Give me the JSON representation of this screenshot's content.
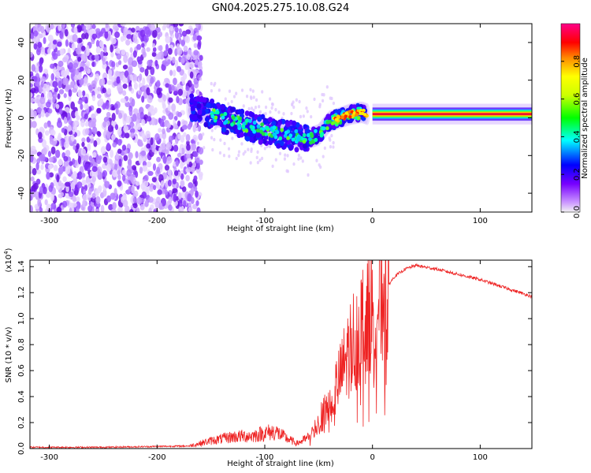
{
  "chart_data": [
    {
      "type": "heatmap",
      "title": "GN04.2025.275.10.08.G24",
      "xlabel": "Height of straight line (km)",
      "ylabel": "Frequency (Hz)",
      "xlim": [
        -318,
        148
      ],
      "ylim": [
        -50,
        50
      ],
      "x_ticks": [
        -300,
        -200,
        -100,
        0,
        100
      ],
      "y_ticks": [
        -40,
        -20,
        0,
        20,
        40
      ],
      "colorbar": {
        "label": "Normalized spectral amplitude",
        "range": [
          0,
          1
        ],
        "ticks": [
          0.0,
          0.2,
          0.4,
          0.6,
          0.8
        ]
      },
      "ridge": {
        "x": [
          -170,
          -150,
          -130,
          -110,
          -90,
          -70,
          -60,
          -50,
          -40,
          -30,
          -20,
          -10,
          0,
          20,
          60,
          100,
          148
        ],
        "y": [
          5,
          2,
          -2,
          -5,
          -8,
          -10,
          -11,
          -9,
          -2,
          0,
          2,
          3,
          1,
          2,
          2,
          2,
          2
        ]
      },
      "noise_region_xmax": -165
    },
    {
      "type": "line",
      "xlabel": "Height of straight line (km)",
      "ylabel": "SNR (10 * v/v)",
      "scale_note": "(x10^4)",
      "scale_base": "(x10",
      "scale_exp": "4",
      "scale_close": ")",
      "xlim": [
        -318,
        148
      ],
      "ylim": [
        0,
        1.45
      ],
      "x_ticks": [
        -300,
        -200,
        -100,
        0,
        100
      ],
      "y_ticks": [
        0.0,
        0.2,
        0.4,
        0.6,
        0.8,
        1.0,
        1.2,
        1.4
      ],
      "series": [
        {
          "name": "SNR",
          "color": "#ee2222",
          "envelope": {
            "x": [
              -318,
              -250,
              -170,
              -150,
              -130,
              -110,
              -100,
              -90,
              -80,
              -70,
              -60,
              -50,
              -40,
              -30,
              -20,
              -10,
              0,
              10,
              20,
              30,
              40,
              60,
              100,
              148
            ],
            "y": [
              0.01,
              0.01,
              0.02,
              0.06,
              0.09,
              0.1,
              0.12,
              0.13,
              0.08,
              0.04,
              0.08,
              0.2,
              0.35,
              0.55,
              0.8,
              0.95,
              1.05,
              1.2,
              1.32,
              1.38,
              1.41,
              1.38,
              1.3,
              1.17
            ]
          }
        }
      ]
    }
  ]
}
